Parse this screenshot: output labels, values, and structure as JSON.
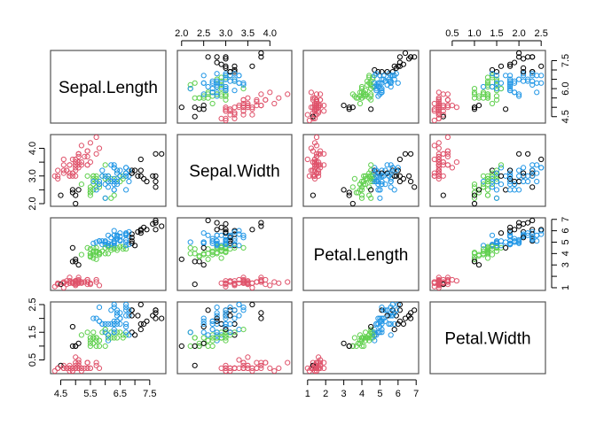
{
  "chart_data": {
    "type": "scatter",
    "layout": "pairs-matrix",
    "variables": [
      "Sepal.Length",
      "Sepal.Width",
      "Petal.Length",
      "Petal.Width"
    ],
    "ranges": [
      [
        4.3,
        7.9
      ],
      [
        2.0,
        4.4
      ],
      [
        1.0,
        6.9
      ],
      [
        0.1,
        2.5
      ]
    ],
    "group_colors": [
      "#000000",
      "#DF536B",
      "#61D04F",
      "#2297E6"
    ],
    "axes": {
      "top": [
        {
          "variable": 1,
          "ticks": [
            2.0,
            2.5,
            3.0,
            3.5,
            4.0
          ],
          "labels": [
            "2.0",
            "2.5",
            "3.0",
            "3.5",
            "4.0"
          ]
        },
        {
          "variable": 3,
          "ticks": [
            0.5,
            1.0,
            1.5,
            2.0,
            2.5
          ],
          "labels": [
            "0.5",
            "1.0",
            "1.5",
            "2.0",
            "2.5"
          ]
        }
      ],
      "bottom": [
        {
          "variable": 0,
          "ticks": [
            4.5,
            5.0,
            5.5,
            6.0,
            6.5,
            7.0,
            7.5
          ],
          "labels": [
            "4.5",
            "",
            "5.5",
            "",
            "6.5",
            "",
            "7.5"
          ]
        },
        {
          "variable": 2,
          "ticks": [
            1,
            2,
            3,
            4,
            5,
            6,
            7
          ],
          "labels": [
            "1",
            "2",
            "3",
            "4",
            "5",
            "6",
            "7"
          ]
        }
      ],
      "left": [
        {
          "variable": 1,
          "ticks": [
            2.0,
            2.5,
            3.0,
            3.5,
            4.0
          ],
          "labels": [
            "2.0",
            "",
            "3.0",
            "",
            "4.0"
          ]
        },
        {
          "variable": 3,
          "ticks": [
            0.5,
            1.0,
            1.5,
            2.0,
            2.5
          ],
          "labels": [
            "0.5",
            "",
            "1.5",
            "",
            "2.5"
          ]
        }
      ],
      "right": [
        {
          "variable": 0,
          "ticks": [
            4.5,
            5.0,
            5.5,
            6.0,
            6.5,
            7.0,
            7.5
          ],
          "labels": [
            "4.5",
            "",
            "",
            "6.0",
            "",
            "",
            "7.5"
          ]
        },
        {
          "variable": 2,
          "ticks": [
            1,
            2,
            3,
            4,
            5,
            6,
            7
          ],
          "labels": [
            "1",
            "",
            "3",
            "4",
            "5",
            "6",
            "7"
          ]
        }
      ]
    },
    "columns": [
      "Sepal.Length",
      "Sepal.Width",
      "Petal.Length",
      "Petal.Width",
      "group"
    ],
    "rows": [
      [
        5.1,
        3.5,
        1.4,
        0.2,
        1
      ],
      [
        4.9,
        3.0,
        1.4,
        0.2,
        1
      ],
      [
        4.7,
        3.2,
        1.3,
        0.2,
        1
      ],
      [
        4.6,
        3.1,
        1.5,
        0.2,
        1
      ],
      [
        5.0,
        3.6,
        1.4,
        0.2,
        1
      ],
      [
        5.4,
        3.9,
        1.7,
        0.4,
        1
      ],
      [
        4.6,
        3.4,
        1.4,
        0.3,
        1
      ],
      [
        5.0,
        3.4,
        1.5,
        0.2,
        1
      ],
      [
        4.4,
        2.9,
        1.4,
        0.2,
        1
      ],
      [
        4.9,
        3.1,
        1.5,
        0.1,
        1
      ],
      [
        5.4,
        3.7,
        1.5,
        0.2,
        1
      ],
      [
        4.8,
        3.4,
        1.6,
        0.2,
        1
      ],
      [
        4.8,
        3.0,
        1.4,
        0.1,
        1
      ],
      [
        4.3,
        3.0,
        1.1,
        0.1,
        1
      ],
      [
        5.8,
        4.0,
        1.2,
        0.2,
        1
      ],
      [
        5.7,
        4.4,
        1.5,
        0.4,
        1
      ],
      [
        5.4,
        3.9,
        1.3,
        0.4,
        1
      ],
      [
        5.1,
        3.5,
        1.4,
        0.3,
        1
      ],
      [
        5.7,
        3.8,
        1.7,
        0.3,
        1
      ],
      [
        5.1,
        3.8,
        1.5,
        0.3,
        1
      ],
      [
        5.4,
        3.4,
        1.7,
        0.2,
        1
      ],
      [
        5.1,
        3.7,
        1.5,
        0.4,
        1
      ],
      [
        4.6,
        3.6,
        1.0,
        0.2,
        1
      ],
      [
        5.1,
        3.3,
        1.7,
        0.5,
        1
      ],
      [
        4.8,
        3.4,
        1.9,
        0.2,
        1
      ],
      [
        5.0,
        3.0,
        1.6,
        0.2,
        1
      ],
      [
        5.0,
        3.4,
        1.6,
        0.4,
        1
      ],
      [
        5.2,
        3.5,
        1.5,
        0.2,
        1
      ],
      [
        5.2,
        3.4,
        1.4,
        0.2,
        1
      ],
      [
        4.7,
        3.2,
        1.6,
        0.2,
        1
      ],
      [
        4.8,
        3.1,
        1.6,
        0.2,
        1
      ],
      [
        5.4,
        3.4,
        1.5,
        0.4,
        1
      ],
      [
        5.2,
        4.1,
        1.5,
        0.1,
        1
      ],
      [
        5.5,
        4.2,
        1.4,
        0.2,
        1
      ],
      [
        4.9,
        3.1,
        1.5,
        0.2,
        1
      ],
      [
        5.0,
        3.2,
        1.2,
        0.2,
        1
      ],
      [
        5.5,
        3.5,
        1.3,
        0.2,
        1
      ],
      [
        4.9,
        3.6,
        1.4,
        0.1,
        1
      ],
      [
        4.4,
        3.0,
        1.3,
        0.2,
        1
      ],
      [
        5.1,
        3.4,
        1.5,
        0.2,
        1
      ],
      [
        5.0,
        3.5,
        1.3,
        0.3,
        1
      ],
      [
        4.5,
        2.3,
        1.3,
        0.3,
        0
      ],
      [
        4.4,
        3.2,
        1.3,
        0.2,
        1
      ],
      [
        5.0,
        3.5,
        1.6,
        0.6,
        1
      ],
      [
        5.1,
        3.8,
        1.9,
        0.4,
        1
      ],
      [
        4.8,
        3.0,
        1.4,
        0.3,
        1
      ],
      [
        5.1,
        3.8,
        1.6,
        0.2,
        1
      ],
      [
        4.6,
        3.2,
        1.4,
        0.2,
        1
      ],
      [
        5.3,
        3.7,
        1.5,
        0.2,
        1
      ],
      [
        5.0,
        3.3,
        1.4,
        0.2,
        1
      ],
      [
        7.0,
        3.2,
        4.7,
        1.4,
        0
      ],
      [
        6.4,
        3.2,
        4.5,
        1.5,
        2
      ],
      [
        6.9,
        3.1,
        4.9,
        1.5,
        0
      ],
      [
        5.5,
        2.3,
        4.0,
        1.3,
        2
      ],
      [
        6.5,
        2.8,
        4.6,
        1.5,
        2
      ],
      [
        5.7,
        2.8,
        4.5,
        1.3,
        2
      ],
      [
        6.3,
        3.3,
        4.7,
        1.6,
        3
      ],
      [
        4.9,
        2.4,
        3.3,
        1.0,
        0
      ],
      [
        6.6,
        2.9,
        4.6,
        1.3,
        2
      ],
      [
        5.2,
        2.7,
        3.9,
        1.4,
        2
      ],
      [
        5.0,
        2.0,
        3.5,
        1.0,
        0
      ],
      [
        5.9,
        3.0,
        4.2,
        1.5,
        2
      ],
      [
        6.0,
        2.2,
        4.0,
        1.0,
        2
      ],
      [
        6.1,
        2.9,
        4.7,
        1.4,
        3
      ],
      [
        5.6,
        2.9,
        3.6,
        1.3,
        2
      ],
      [
        6.7,
        3.1,
        4.4,
        1.4,
        2
      ],
      [
        5.6,
        3.0,
        4.5,
        1.5,
        2
      ],
      [
        5.8,
        2.7,
        4.1,
        1.0,
        2
      ],
      [
        6.2,
        2.2,
        4.5,
        1.5,
        2
      ],
      [
        5.6,
        2.5,
        3.9,
        1.1,
        2
      ],
      [
        5.9,
        3.2,
        4.8,
        1.8,
        3
      ],
      [
        6.1,
        2.8,
        4.0,
        1.3,
        2
      ],
      [
        6.3,
        2.5,
        4.9,
        1.5,
        3
      ],
      [
        6.1,
        2.8,
        4.7,
        1.2,
        3
      ],
      [
        6.4,
        2.9,
        4.3,
        1.3,
        2
      ],
      [
        6.6,
        3.0,
        4.4,
        1.4,
        2
      ],
      [
        6.8,
        2.8,
        4.8,
        1.4,
        3
      ],
      [
        6.7,
        3.0,
        5.0,
        1.7,
        3
      ],
      [
        6.0,
        2.9,
        4.5,
        1.5,
        2
      ],
      [
        5.7,
        2.6,
        3.5,
        1.0,
        2
      ],
      [
        5.5,
        2.4,
        3.8,
        1.1,
        2
      ],
      [
        5.5,
        2.4,
        3.7,
        1.0,
        2
      ],
      [
        5.8,
        2.7,
        3.9,
        1.2,
        2
      ],
      [
        6.0,
        2.7,
        5.1,
        1.6,
        3
      ],
      [
        5.4,
        3.0,
        4.5,
        1.5,
        2
      ],
      [
        6.0,
        3.4,
        4.5,
        1.6,
        2
      ],
      [
        6.7,
        3.1,
        4.7,
        1.5,
        3
      ],
      [
        6.3,
        2.3,
        4.4,
        1.3,
        2
      ],
      [
        5.6,
        3.0,
        4.1,
        1.3,
        2
      ],
      [
        5.5,
        2.5,
        4.0,
        1.3,
        2
      ],
      [
        5.5,
        2.6,
        4.4,
        1.2,
        2
      ],
      [
        6.1,
        3.0,
        4.6,
        1.4,
        2
      ],
      [
        5.8,
        2.6,
        4.0,
        1.2,
        2
      ],
      [
        5.0,
        2.3,
        3.3,
        1.0,
        0
      ],
      [
        5.6,
        2.7,
        4.2,
        1.3,
        2
      ],
      [
        5.7,
        3.0,
        4.2,
        1.2,
        2
      ],
      [
        5.7,
        2.9,
        4.2,
        1.3,
        2
      ],
      [
        6.2,
        2.9,
        4.3,
        1.3,
        2
      ],
      [
        5.1,
        2.5,
        3.0,
        1.1,
        0
      ],
      [
        5.7,
        2.8,
        4.1,
        1.3,
        2
      ],
      [
        6.3,
        3.3,
        6.0,
        2.5,
        3
      ],
      [
        5.8,
        2.7,
        5.1,
        1.9,
        3
      ],
      [
        7.1,
        3.0,
        5.9,
        2.1,
        0
      ],
      [
        6.3,
        2.9,
        5.6,
        1.8,
        3
      ],
      [
        6.5,
        3.0,
        5.8,
        2.2,
        3
      ],
      [
        7.6,
        3.0,
        6.6,
        2.1,
        0
      ],
      [
        4.9,
        2.5,
        4.5,
        1.7,
        0
      ],
      [
        7.3,
        2.9,
        6.3,
        1.8,
        0
      ],
      [
        6.7,
        2.5,
        5.8,
        1.8,
        3
      ],
      [
        7.2,
        3.6,
        6.1,
        2.5,
        0
      ],
      [
        6.5,
        3.2,
        5.1,
        2.0,
        3
      ],
      [
        6.4,
        2.7,
        5.3,
        1.9,
        3
      ],
      [
        6.8,
        3.0,
        5.5,
        2.1,
        3
      ],
      [
        5.7,
        2.5,
        5.0,
        2.0,
        3
      ],
      [
        5.8,
        2.8,
        5.1,
        2.4,
        3
      ],
      [
        6.4,
        3.2,
        5.3,
        2.3,
        3
      ],
      [
        6.5,
        3.0,
        5.5,
        1.8,
        3
      ],
      [
        7.7,
        3.8,
        6.7,
        2.2,
        0
      ],
      [
        7.7,
        2.6,
        6.9,
        2.3,
        0
      ],
      [
        6.0,
        2.2,
        5.0,
        1.5,
        3
      ],
      [
        6.9,
        3.2,
        5.7,
        2.3,
        0
      ],
      [
        5.6,
        2.8,
        4.9,
        2.0,
        3
      ],
      [
        7.7,
        2.8,
        6.7,
        2.0,
        0
      ],
      [
        6.3,
        2.7,
        4.9,
        1.8,
        3
      ],
      [
        6.7,
        3.3,
        5.7,
        2.1,
        3
      ],
      [
        7.2,
        3.2,
        6.0,
        1.8,
        0
      ],
      [
        6.2,
        2.8,
        4.8,
        1.8,
        3
      ],
      [
        6.1,
        3.0,
        4.9,
        1.8,
        3
      ],
      [
        6.4,
        2.8,
        5.6,
        2.1,
        3
      ],
      [
        7.2,
        3.0,
        5.8,
        1.6,
        0
      ],
      [
        7.4,
        2.8,
        6.1,
        1.9,
        0
      ],
      [
        7.9,
        3.8,
        6.4,
        2.0,
        0
      ],
      [
        6.4,
        2.8,
        5.6,
        2.2,
        3
      ],
      [
        6.3,
        2.8,
        5.1,
        1.5,
        3
      ],
      [
        6.1,
        2.6,
        5.6,
        1.4,
        3
      ],
      [
        7.7,
        3.0,
        6.1,
        2.3,
        0
      ],
      [
        6.3,
        3.4,
        5.6,
        2.4,
        3
      ],
      [
        6.4,
        3.1,
        5.5,
        1.8,
        3
      ],
      [
        6.0,
        3.0,
        4.8,
        1.8,
        3
      ],
      [
        6.9,
        3.1,
        5.4,
        2.1,
        0
      ],
      [
        6.7,
        3.1,
        5.6,
        2.4,
        3
      ],
      [
        6.9,
        3.1,
        5.1,
        2.3,
        0
      ],
      [
        5.8,
        2.7,
        5.1,
        1.9,
        3
      ],
      [
        6.8,
        3.2,
        5.9,
        2.3,
        3
      ],
      [
        6.7,
        3.3,
        5.7,
        2.5,
        3
      ],
      [
        6.7,
        3.0,
        5.2,
        2.3,
        3
      ],
      [
        6.3,
        2.5,
        5.0,
        1.9,
        3
      ],
      [
        6.5,
        3.0,
        5.2,
        2.0,
        3
      ],
      [
        6.2,
        3.4,
        5.4,
        2.3,
        3
      ],
      [
        5.9,
        3.0,
        5.1,
        1.8,
        3
      ]
    ]
  }
}
